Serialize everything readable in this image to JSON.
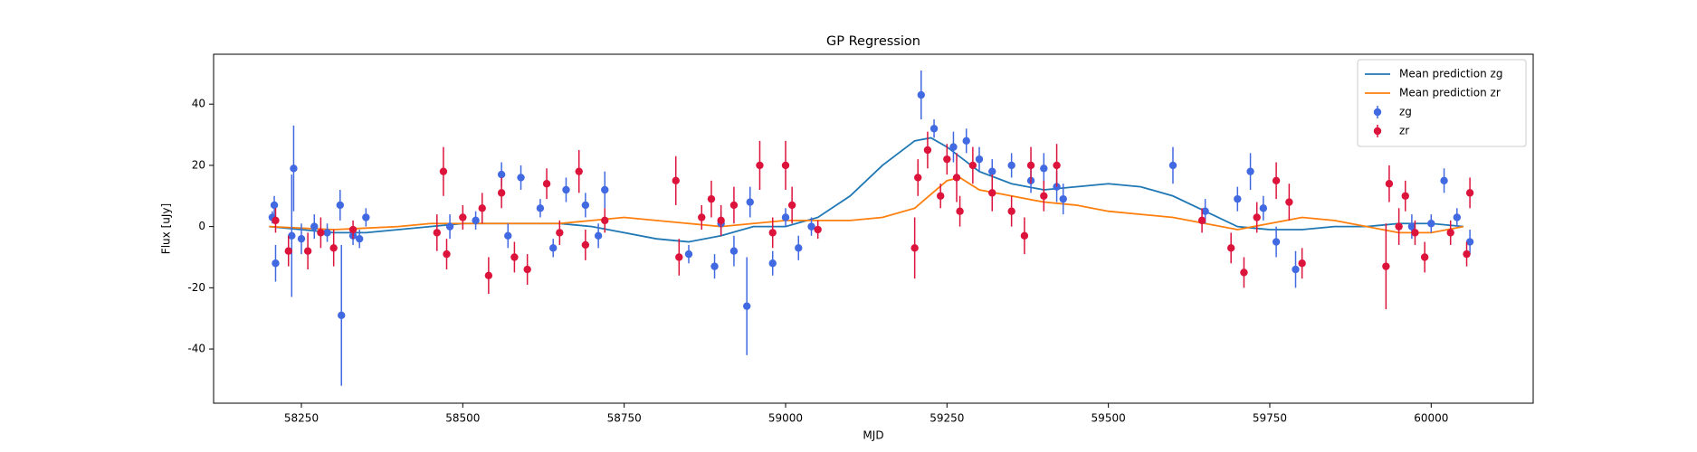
{
  "chart_data": {
    "type": "errorbar",
    "title": "GP Regression",
    "x_label": "MJD",
    "y_label": "Flux [uJy]",
    "xlim": [
      58114,
      60158
    ],
    "ylim": [
      -57.7,
      56.3
    ],
    "xticks": [
      58250,
      58500,
      58750,
      59000,
      59250,
      59500,
      59750,
      60000
    ],
    "yticks": [
      -40,
      -20,
      0,
      20,
      40
    ],
    "legend": "upper right",
    "series": [
      {
        "name": "Mean prediction zg",
        "kind": "line",
        "color": "#1f77b4",
        "x": [
          58200,
          58250,
          58300,
          58350,
          58400,
          58450,
          58500,
          58550,
          58600,
          58650,
          58700,
          58750,
          58800,
          58850,
          58900,
          58950,
          59000,
          59050,
          59100,
          59150,
          59200,
          59225,
          59250,
          59300,
          59350,
          59400,
          59450,
          59500,
          59550,
          59600,
          59650,
          59700,
          59750,
          59800,
          59850,
          59900,
          59950,
          60000,
          60050
        ],
        "values": [
          0,
          -1,
          -2,
          -2,
          -1,
          0,
          1,
          1,
          1,
          1,
          0,
          -2,
          -4,
          -5,
          -3,
          0,
          0,
          3,
          10,
          20,
          28,
          29,
          26,
          18,
          14,
          12,
          13,
          14,
          13,
          10,
          5,
          0,
          -1,
          -1,
          0,
          0,
          1,
          1,
          0
        ]
      },
      {
        "name": "Mean prediction zr",
        "kind": "line",
        "color": "#ff7f0e",
        "x": [
          58200,
          58300,
          58400,
          58450,
          58500,
          58550,
          58600,
          58650,
          58700,
          58750,
          58800,
          58850,
          58900,
          58950,
          59000,
          59050,
          59100,
          59150,
          59200,
          59250,
          59270,
          59300,
          59350,
          59400,
          59450,
          59500,
          59550,
          59600,
          59650,
          59700,
          59750,
          59800,
          59850,
          59900,
          59950,
          60000,
          60050
        ],
        "values": [
          0,
          -1,
          0,
          1,
          1,
          1,
          1,
          1,
          2,
          3,
          2,
          1,
          0,
          1,
          2,
          2,
          2,
          3,
          6,
          15,
          16,
          12,
          10,
          8,
          7,
          5,
          4,
          3,
          1,
          -1,
          1,
          3,
          2,
          0,
          -2,
          -2,
          0
        ]
      },
      {
        "name": "zg",
        "kind": "errorbar",
        "color": "#4169e1",
        "x": [
          58205,
          58208,
          58210,
          58235,
          58238,
          58250,
          58270,
          58290,
          58310,
          58312,
          58330,
          58340,
          58350,
          58480,
          58520,
          58560,
          58570,
          58590,
          58620,
          58640,
          58660,
          58690,
          58710,
          58720,
          58850,
          58890,
          58900,
          58920,
          58940,
          58945,
          58980,
          59000,
          59020,
          59040,
          59210,
          59230,
          59260,
          59280,
          59300,
          59320,
          59350,
          59380,
          59400,
          59420,
          59430,
          59600,
          59650,
          59700,
          59720,
          59740,
          59760,
          59790,
          59970,
          60000,
          60020,
          60040,
          60060
        ],
        "values": [
          3,
          7,
          -12,
          -3,
          19,
          -4,
          0,
          -2,
          7,
          -29,
          -3,
          -4,
          3,
          0,
          2,
          17,
          -3,
          16,
          6,
          -7,
          12,
          7,
          -3,
          12,
          -9,
          -13,
          1,
          -8,
          -26,
          8,
          -12,
          3,
          -7,
          0,
          43,
          32,
          26,
          28,
          22,
          18,
          20,
          15,
          19,
          13,
          9,
          20,
          5,
          9,
          18,
          6,
          -5,
          -14,
          0,
          1,
          15,
          3,
          -5
        ],
        "errors": [
          2,
          3,
          6,
          20,
          14,
          5,
          4,
          3,
          5,
          23,
          3,
          3,
          3,
          4,
          3,
          4,
          4,
          4,
          3,
          3,
          4,
          4,
          4,
          6,
          3,
          4,
          4,
          5,
          16,
          5,
          4,
          3,
          4,
          3,
          8,
          3,
          5,
          4,
          4,
          4,
          4,
          4,
          5,
          5,
          5,
          6,
          4,
          4,
          6,
          4,
          5,
          6,
          4,
          3,
          4,
          3,
          4
        ]
      },
      {
        "name": "zr",
        "kind": "errorbar",
        "color": "#dc143c",
        "x": [
          58210,
          58230,
          58260,
          58280,
          58300,
          58330,
          58460,
          58470,
          58475,
          58500,
          58530,
          58540,
          58560,
          58580,
          58600,
          58630,
          58650,
          58680,
          58690,
          58720,
          58830,
          58835,
          58870,
          58885,
          58900,
          58920,
          58960,
          58980,
          59000,
          59010,
          59050,
          59200,
          59205,
          59220,
          59240,
          59250,
          59265,
          59270,
          59290,
          59320,
          59350,
          59370,
          59380,
          59400,
          59420,
          59645,
          59690,
          59710,
          59730,
          59760,
          59780,
          59800,
          59930,
          59935,
          59950,
          59960,
          59975,
          59990,
          60030,
          60055,
          60060
        ],
        "values": [
          2,
          -8,
          -8,
          -2,
          -7,
          -1,
          -2,
          18,
          -9,
          3,
          6,
          -16,
          11,
          -10,
          -14,
          14,
          -2,
          18,
          -6,
          2,
          15,
          -10,
          3,
          9,
          2,
          7,
          20,
          -2,
          20,
          7,
          -1,
          -7,
          16,
          25,
          10,
          22,
          16,
          5,
          20,
          11,
          5,
          -3,
          20,
          10,
          20,
          2,
          -7,
          -15,
          3,
          15,
          8,
          -12,
          -13,
          14,
          0,
          10,
          -2,
          -10,
          -2,
          -9,
          11
        ],
        "errors": [
          4,
          5,
          6,
          5,
          6,
          3,
          6,
          8,
          5,
          4,
          5,
          6,
          5,
          5,
          5,
          5,
          4,
          7,
          5,
          4,
          8,
          6,
          4,
          6,
          5,
          6,
          8,
          5,
          8,
          6,
          3,
          10,
          6,
          6,
          4,
          5,
          8,
          5,
          6,
          6,
          5,
          6,
          6,
          5,
          7,
          4,
          5,
          5,
          5,
          6,
          6,
          5,
          14,
          6,
          6,
          5,
          4,
          5,
          4,
          4,
          5
        ]
      }
    ]
  }
}
